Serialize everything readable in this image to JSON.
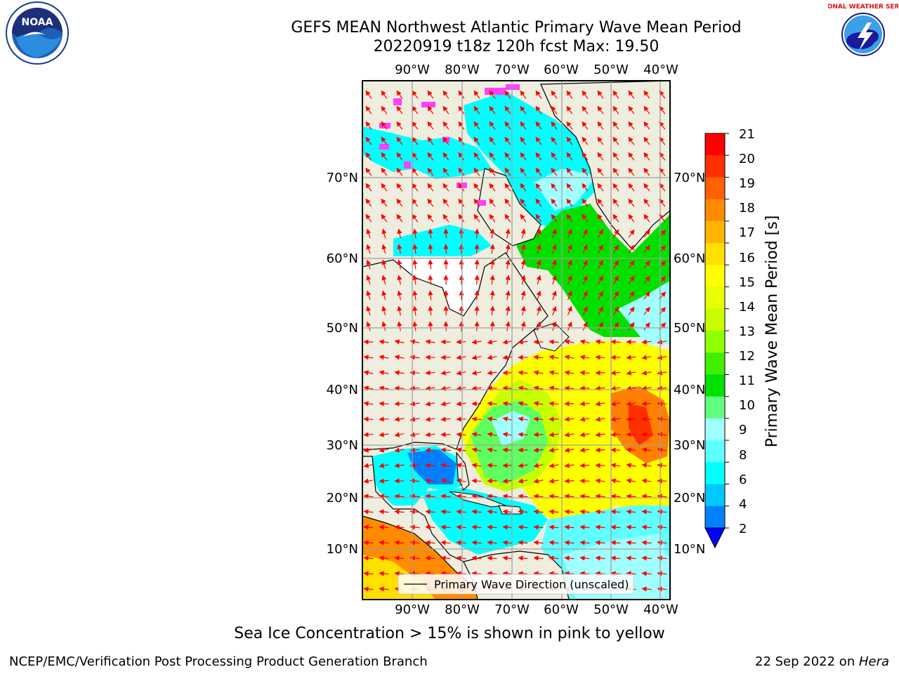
{
  "title_line1": "GEFS MEAN Northwest Atlantic Primary Wave Mean Period",
  "title_line2": "20220919 t18z 120h fcst   Max: 19.50",
  "caption": "Sea Ice Concentration > 15% is shown in pink to yellow",
  "footer_left": "NCEP/EMC/Verification Post Processing Product Generation Branch",
  "footer_date": "22 Sep 2022 on ",
  "footer_machine": "Hera",
  "legend_label": "Primary Wave Direction (unscaled)",
  "logos": {
    "noaa_text": "NOAA",
    "nws_text": "NATIONAL WEATHER SERVICE"
  },
  "map": {
    "lon_ticks": [
      "90°W",
      "80°W",
      "70°W",
      "60°W",
      "50°W",
      "40°W"
    ],
    "lat_ticks": [
      "70°N",
      "60°N",
      "50°N",
      "40°N",
      "30°N",
      "20°N",
      "10°N"
    ],
    "land_color": "#efedde",
    "ocean_colors": {
      "cyan": "#00ffff",
      "light_cyan": "#a0ffff",
      "green": "#00e000",
      "light_green": "#60ff60",
      "yellow_green": "#c8ff00",
      "yellow": "#ffff00",
      "orange": "#ff8000",
      "blue": "#0080ff"
    },
    "arrow_color": "#ff0000",
    "ice_color": "#ff40ff"
  },
  "colorbar": {
    "label": "Primary Wave Mean Period [s]",
    "ticks": [
      "21",
      "20",
      "19",
      "18",
      "17",
      "16",
      "15",
      "14",
      "13",
      "12",
      "11",
      "10",
      "9",
      "8",
      "6",
      "4",
      "2"
    ],
    "colors": [
      "#ff0000",
      "#ff3000",
      "#ff6000",
      "#ff8c00",
      "#ffb400",
      "#ffe000",
      "#ffff00",
      "#e8ff00",
      "#c8ff00",
      "#90ff00",
      "#40f000",
      "#00e000",
      "#60ff80",
      "#a0ffff",
      "#60ffff",
      "#00ffff",
      "#00c8ff",
      "#0080ff"
    ],
    "extend_color": "#0000ff"
  }
}
